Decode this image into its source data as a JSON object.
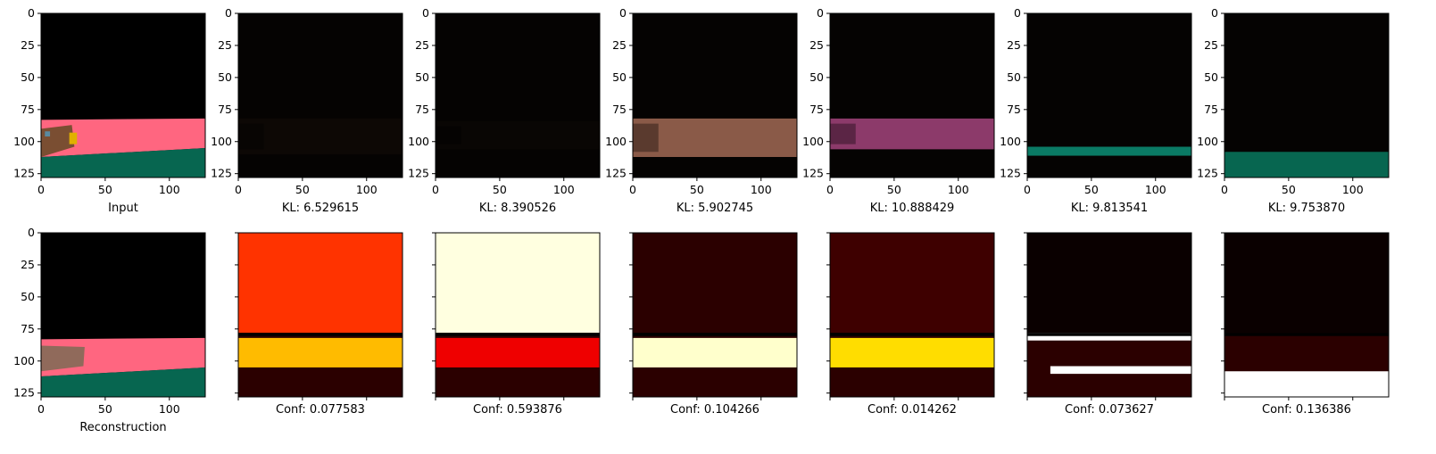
{
  "chart_data": {
    "type": "image_grid",
    "image_size": [
      128,
      128
    ],
    "xlim": [
      0,
      128
    ],
    "ylim": [
      128,
      0
    ],
    "x_ticks": [
      0,
      50,
      100
    ],
    "y_ticks": [
      0,
      25,
      50,
      75,
      100,
      125
    ],
    "top_row": [
      {
        "caption": "Input",
        "kind": "input",
        "color": "#ff6680"
      },
      {
        "caption": "KL: 6.529615",
        "kind": "mask",
        "color": "#2c1c16",
        "band": [
          82,
          110
        ],
        "brightness": 0.2
      },
      {
        "caption": "KL: 8.390526",
        "kind": "mask",
        "color": "#221814",
        "band": [
          84,
          106
        ],
        "brightness": 0.15
      },
      {
        "caption": "KL: 5.902745",
        "kind": "mask",
        "color": "#8a5a48",
        "band": [
          82,
          112
        ],
        "brightness": 1.0
      },
      {
        "caption": "KL: 10.888429",
        "kind": "mask",
        "color": "#8c3a6a",
        "band": [
          82,
          106
        ],
        "brightness": 1.0
      },
      {
        "caption": "KL: 9.813541",
        "kind": "mask",
        "color": "#0a7a64",
        "band": [
          104,
          111
        ],
        "brightness": 1.0
      },
      {
        "caption": "KL: 9.753870",
        "kind": "mask",
        "color": "#076650",
        "band": [
          108,
          128
        ],
        "brightness": 1.0
      }
    ],
    "bottom_row": [
      {
        "caption": "Reconstruction",
        "kind": "reconstruction"
      },
      {
        "caption": "Conf: 0.077583",
        "kind": "conf",
        "top_region": 0.45,
        "band": [
          82,
          105
        ],
        "band_value": 0.65
      },
      {
        "caption": "Conf: 0.593876",
        "kind": "conf",
        "top_region": 0.97,
        "band": [
          82,
          105
        ],
        "band_value": 0.35
      },
      {
        "caption": "Conf: 0.104266",
        "kind": "conf",
        "top_region": 0.05,
        "band": [
          82,
          105
        ],
        "band_value": 0.95
      },
      {
        "caption": "Conf: 0.014262",
        "kind": "conf",
        "top_region": 0.08,
        "band": [
          82,
          105
        ],
        "band_value": 0.7
      },
      {
        "caption": "Conf: 0.073627",
        "kind": "conf",
        "top_region": 0.0,
        "band": [
          78,
          84
        ],
        "band_value": 1.0,
        "band2": [
          104,
          110
        ]
      },
      {
        "caption": "Conf: 0.136386",
        "kind": "conf",
        "top_region": 0.0,
        "band": [
          108,
          128
        ],
        "band_value": 1.0
      }
    ],
    "colors": {
      "pink": "#ff6680",
      "teal": "#076650",
      "sky": "#000000",
      "boat": "#7a4e32"
    }
  }
}
